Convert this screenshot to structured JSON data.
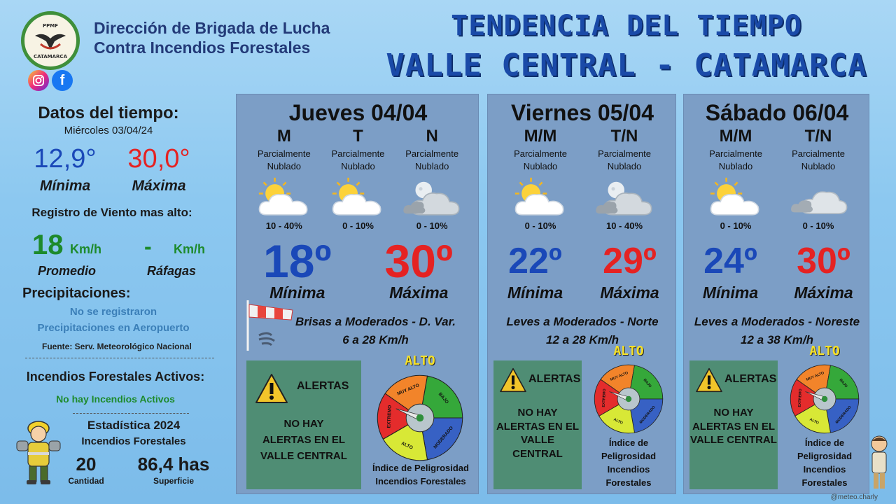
{
  "header": {
    "org_line1": "Dirección de Brigada de Lucha",
    "org_line2": "Contra Incendios Forestales",
    "logo_text_top": "PPMF",
    "logo_text_bottom": "CATAMARCA",
    "title_line1": "TENDENCIA DEL TIEMPO",
    "title_line2": "VALLE CENTRAL - CATAMARCA",
    "social_icons": [
      "instagram-icon",
      "facebook-icon"
    ]
  },
  "left": {
    "datos_title": "Datos del tiempo:",
    "date": "Miércoles 03/04/24",
    "min_value": "12,9°",
    "max_value": "30,0°",
    "min_label": "Mínima",
    "max_label": "Máxima",
    "viento_title": "Registro de Viento mas alto:",
    "wind_avg": "18",
    "wind_avg_unit": "Km/h",
    "wind_gust": "-",
    "wind_gust_unit": "Km/h",
    "wind_avg_label": "Promedio",
    "wind_gust_label": "Ráfagas",
    "precip_title": "Precipitaciones:",
    "precip_line1": "No se registraron",
    "precip_line2": "Precipitaciones en Aeropuerto",
    "source": "Fuente: Serv. Meteorológico Nacional",
    "fires_title": "Incendios Forestales Activos:",
    "fires_status": "No hay Incendios Activos",
    "stats_title": "Estadística 2024",
    "stats_subtitle": "Incendios Forestales",
    "stats_count": "20",
    "stats_count_label": "Cantidad",
    "stats_area": "86,4 has",
    "stats_area_label": "Superficie"
  },
  "days": [
    {
      "title": "Jueves 04/04",
      "periods": [
        {
          "label": "M",
          "cond1": "Parcialmente",
          "cond2": "Nublado",
          "prob": "10 - 40%",
          "icon": "partly-cloudy-icon"
        },
        {
          "label": "T",
          "cond1": "Parcialmente",
          "cond2": "Nublado",
          "prob": "0 - 10%",
          "icon": "partly-cloudy-icon"
        },
        {
          "label": "N",
          "cond1": "Parcialmente",
          "cond2": "Nublado",
          "prob": "0 - 10%",
          "icon": "night-cloudy-icon"
        }
      ],
      "min": "18º",
      "max": "30º",
      "min_label": "Mínima",
      "max_label": "Máxima",
      "wind1": "Brisas a Moderados - D. Var.",
      "wind2": "6 a 28 Km/h",
      "alert_title": "ALERTAS",
      "alert_lines": [
        "NO HAY",
        "ALERTAS EN EL",
        "VALLE CENTRAL"
      ],
      "index_level": "ALTO",
      "index_lines": [
        "Índice de Peligrosidad",
        "Incendios Forestales"
      ]
    },
    {
      "title": "Viernes 05/04",
      "periods": [
        {
          "label": "M/M",
          "cond1": "Parcialmente",
          "cond2": "Nublado",
          "prob": "0 - 10%",
          "icon": "partly-cloudy-icon"
        },
        {
          "label": "T/N",
          "cond1": "Parcialmente",
          "cond2": "Nublado",
          "prob": "10 - 40%",
          "icon": "night-cloudy-icon"
        }
      ],
      "min": "22º",
      "max": "29º",
      "min_label": "Mínima",
      "max_label": "Máxima",
      "wind1": "Leves a Moderados - Norte",
      "wind2": "12 a 28 Km/h",
      "alert_title": "ALERTAS",
      "alert_lines": [
        "NO HAY",
        "ALERTAS EN EL",
        "VALLE",
        "CENTRAL"
      ],
      "index_level": "ALTO",
      "index_lines": [
        "Índice de",
        "Peligrosidad",
        "Incendios",
        "Forestales"
      ]
    },
    {
      "title": "Sábado 06/04",
      "periods": [
        {
          "label": "M/M",
          "cond1": "Parcialmente",
          "cond2": "Nublado",
          "prob": "0 - 10%",
          "icon": "partly-cloudy-icon"
        },
        {
          "label": "T/N",
          "cond1": "Parcialmente",
          "cond2": "Nublado",
          "prob": "0 - 10%",
          "icon": "cloudy-icon"
        }
      ],
      "min": "24º",
      "max": "30º",
      "min_label": "Mínima",
      "max_label": "Máxima",
      "wind1": "Leves a Moderados - Noreste",
      "wind2": "12 a 38 Km/h",
      "alert_title": "ALERTAS",
      "alert_lines": [
        "NO HAY",
        "ALERTAS EN EL",
        "VALLE CENTRAL"
      ],
      "index_level": "ALTO",
      "index_lines": [
        "Índice de",
        "Peligrosidad",
        "Incendios",
        "Forestales"
      ]
    }
  ],
  "gauge_labels": {
    "extremo": "EXTREMO",
    "muy_alto": "MUY ALTO",
    "alto": "ALTO",
    "moderado": "MODERADO",
    "bajo": "BAJO"
  },
  "credit": "@meteo.charly",
  "colors": {
    "min_blue": "#1a48b8",
    "max_red": "#e52222",
    "panel": "#7c9ec6",
    "alert_green": "#4f8d74"
  }
}
